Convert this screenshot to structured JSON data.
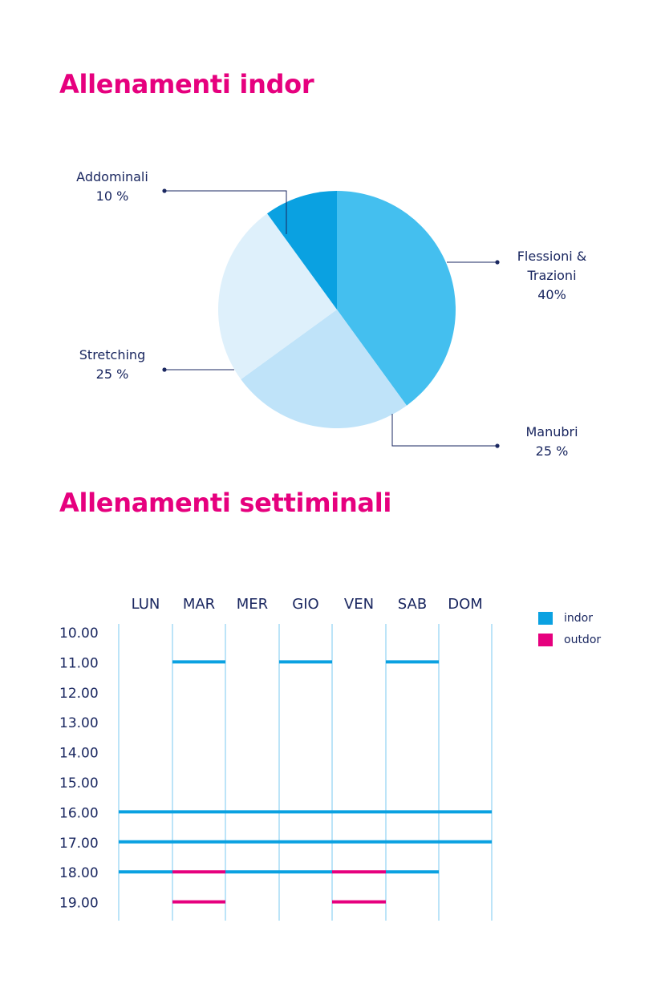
{
  "titles": {
    "indoor": "Allenamenti indor",
    "weekly": "Allenamenti settiminali"
  },
  "chart_data": [
    {
      "type": "pie",
      "title": "Allenamenti indor",
      "slices": [
        {
          "label_lines": [
            "Flessioni &",
            "Trazioni",
            "40%"
          ],
          "value": 40,
          "color": "#44bfef"
        },
        {
          "label_lines": [
            "Manubri",
            "25 %"
          ],
          "value": 25,
          "color": "#bfe3f9"
        },
        {
          "label_lines": [
            "Stretching",
            "25 %"
          ],
          "value": 25,
          "color": "#def0fb"
        },
        {
          "label_lines": [
            "Addominali",
            "10 %"
          ],
          "value": 10,
          "color": "#0aa1e1"
        }
      ]
    },
    {
      "type": "schedule",
      "title": "Allenamenti settiminali",
      "days": [
        "LUN",
        "MAR",
        "MER",
        "GIO",
        "VEN",
        "SAB",
        "DOM"
      ],
      "hours": [
        "10.00",
        "11.00",
        "12.00",
        "13.00",
        "14.00",
        "15.00",
        "16.00",
        "17.00",
        "18.00",
        "19.00"
      ],
      "legend": [
        {
          "name": "indor",
          "color": "#0aa1e1"
        },
        {
          "name": "outdor",
          "color": "#e6007e"
        }
      ],
      "sessions": [
        {
          "hour": "11.00",
          "from_day": "MAR",
          "to_day": "MAR",
          "type": "indor"
        },
        {
          "hour": "11.00",
          "from_day": "GIO",
          "to_day": "GIO",
          "type": "indor"
        },
        {
          "hour": "11.00",
          "from_day": "SAB",
          "to_day": "SAB",
          "type": "indor"
        },
        {
          "hour": "16.00",
          "from_day": "LUN",
          "to_day": "DOM",
          "type": "indor"
        },
        {
          "hour": "17.00",
          "from_day": "LUN",
          "to_day": "DOM",
          "type": "indor"
        },
        {
          "hour": "18.00",
          "from_day": "LUN",
          "to_day": "LUN",
          "type": "indor"
        },
        {
          "hour": "18.00",
          "from_day": "MAR",
          "to_day": "MAR",
          "type": "outdor"
        },
        {
          "hour": "18.00",
          "from_day": "MER",
          "to_day": "GIO",
          "type": "indor"
        },
        {
          "hour": "18.00",
          "from_day": "VEN",
          "to_day": "VEN",
          "type": "outdor"
        },
        {
          "hour": "18.00",
          "from_day": "SAB",
          "to_day": "SAB",
          "type": "indor"
        },
        {
          "hour": "19.00",
          "from_day": "MAR",
          "to_day": "MAR",
          "type": "outdor"
        },
        {
          "hour": "19.00",
          "from_day": "VEN",
          "to_day": "VEN",
          "type": "outdor"
        }
      ]
    }
  ]
}
